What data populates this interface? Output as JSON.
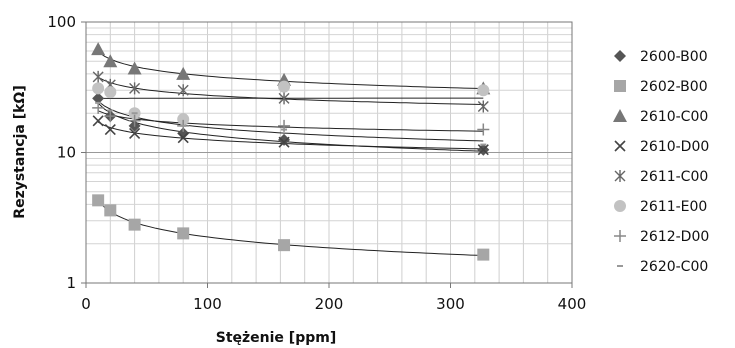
{
  "chart_data": {
    "type": "scatter",
    "x_scale": "linear",
    "y_scale": "log",
    "xlabel": "Stężenie [ppm]",
    "ylabel": "Rezystancja [kΩ]",
    "xlim": [
      0,
      400
    ],
    "ylim": [
      1,
      100
    ],
    "x_ticks": [
      0,
      100,
      200,
      300,
      400
    ],
    "y_ticks": [
      1,
      10,
      100
    ],
    "x_tick_labels": [
      "0",
      "100",
      "200",
      "300",
      "400"
    ],
    "y_tick_labels": [
      "1",
      "10",
      "100"
    ],
    "grid": true,
    "legend_position": "right",
    "trendlines": true,
    "series": [
      {
        "name": "2600-B00",
        "marker": "diamond",
        "color": "#555555",
        "x": [
          10,
          20,
          40,
          80,
          163,
          327
        ],
        "y": [
          26,
          19,
          16,
          14,
          12.5,
          10.5
        ]
      },
      {
        "name": "2602-B00",
        "marker": "square",
        "color": "#a6a6a6",
        "x": [
          10,
          20,
          40,
          80,
          163,
          327
        ],
        "y": [
          4.3,
          3.6,
          2.8,
          2.4,
          1.95,
          1.65
        ]
      },
      {
        "name": "2610-C00",
        "marker": "triangle",
        "color": "#777777",
        "x": [
          10,
          20,
          40,
          80,
          163,
          327
        ],
        "y": [
          62,
          50,
          44,
          40,
          36,
          31
        ]
      },
      {
        "name": "2610-D00",
        "marker": "x",
        "color": "#444444",
        "x": [
          10,
          20,
          40,
          80,
          163,
          327
        ],
        "y": [
          17.5,
          15,
          14,
          13,
          12,
          10.5
        ]
      },
      {
        "name": "2611-C00",
        "marker": "star",
        "color": "#666666",
        "x": [
          10,
          20,
          40,
          80,
          163,
          327
        ],
        "y": [
          38,
          33,
          31,
          30,
          26,
          22.5
        ]
      },
      {
        "name": "2611-E00",
        "marker": "circle",
        "color": "#c2c2c2",
        "x": [
          10,
          20,
          40,
          80,
          163,
          327
        ],
        "y": [
          31,
          29,
          20,
          18,
          32,
          30
        ]
      },
      {
        "name": "2612-D00",
        "marker": "plus",
        "color": "#888888",
        "x": [
          10,
          20,
          40,
          80,
          163,
          327
        ],
        "y": [
          22,
          19,
          17.5,
          16,
          16,
          15
        ]
      },
      {
        "name": "2620-C00",
        "marker": "dash",
        "color": "#999999",
        "x": [
          10,
          20,
          40,
          80,
          163,
          327
        ],
        "y": [
          24,
          21,
          20,
          16,
          15,
          11.5
        ]
      }
    ]
  }
}
